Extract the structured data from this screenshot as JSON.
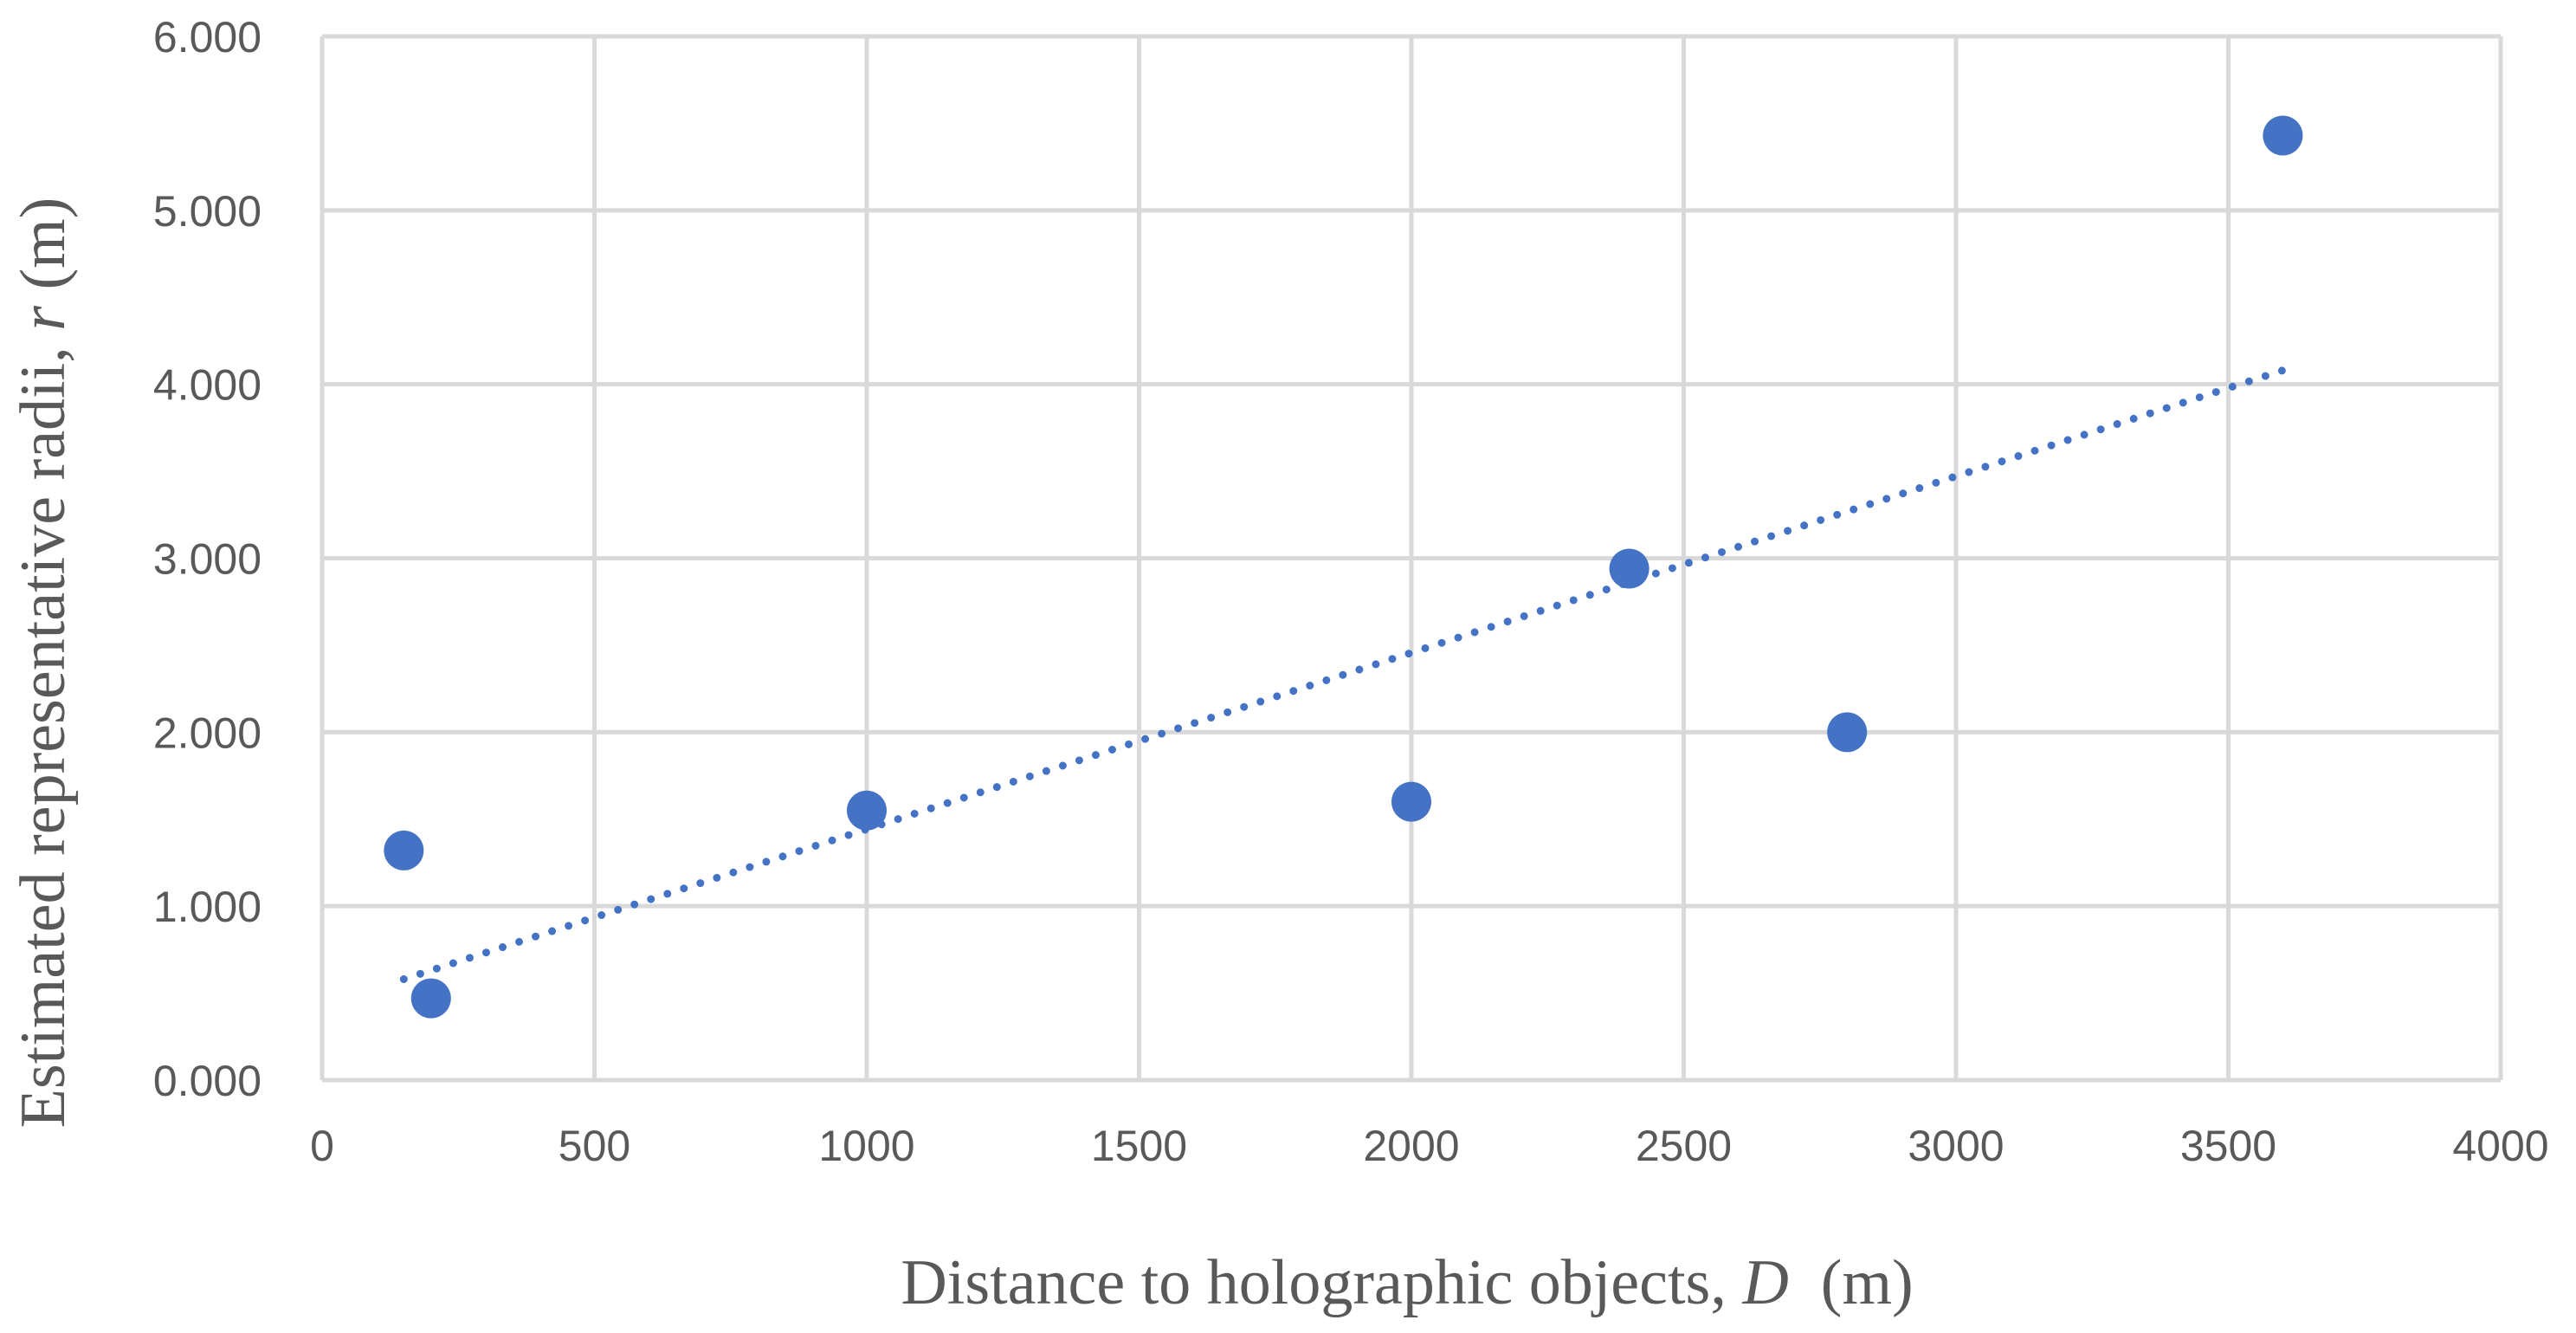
{
  "chart_data": {
    "type": "scatter",
    "xlabel_prefix": "Distance to holographic objects, ",
    "xlabel_var": "D",
    "xlabel_suffix": "  (m)",
    "ylabel_prefix": "Estimated representative radii, ",
    "ylabel_var": "r",
    "ylabel_suffix": " (m)",
    "xlim": [
      0,
      4000
    ],
    "ylim": [
      0,
      6
    ],
    "x_ticks": [
      "0",
      "500",
      "1000",
      "1500",
      "2000",
      "2500",
      "3000",
      "3500",
      "4000"
    ],
    "y_ticks": [
      "0.000",
      "1.000",
      "2.000",
      "3.000",
      "4.000",
      "5.000",
      "6.000"
    ],
    "grid": true,
    "legend": "none",
    "point_color": "#4472c4",
    "points": [
      {
        "x": 150,
        "y": 1.32
      },
      {
        "x": 200,
        "y": 0.47
      },
      {
        "x": 1000,
        "y": 1.55
      },
      {
        "x": 2000,
        "y": 1.6
      },
      {
        "x": 2400,
        "y": 2.94
      },
      {
        "x": 2800,
        "y": 2.0
      },
      {
        "x": 3600,
        "y": 5.43
      }
    ],
    "trendline": {
      "style": "dotted",
      "kind": "linear",
      "x_range": [
        150,
        3600
      ],
      "y_range": [
        0.58,
        4.08
      ]
    }
  }
}
